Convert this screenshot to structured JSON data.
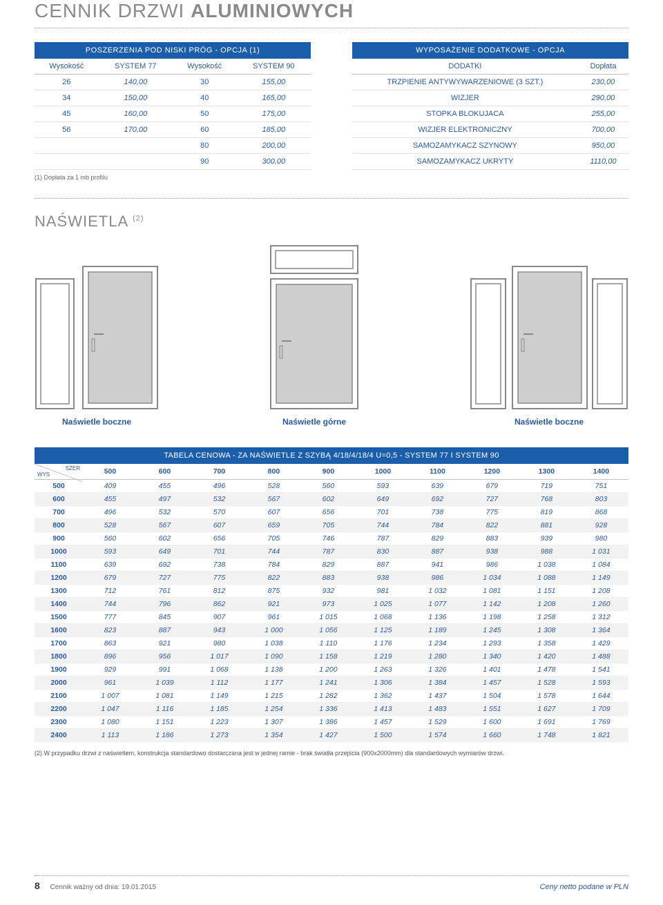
{
  "colors": {
    "primary_blue": "#1a5eab",
    "text_blue": "#2a5a9a",
    "grey_title": "#8a8a8a",
    "row_alt": "#f2f2f2",
    "border": "#e0e0e0",
    "door_fill": "#cfcfcf",
    "door_stroke": "#888888"
  },
  "title_thin": "CENNIK DRZWI ",
  "title_bold": "ALUMINIOWYCH",
  "left_table": {
    "header": "POSZERZENIA POD NISKI PRÓG - OPCJA (1)",
    "cols": [
      "Wysokość",
      "SYSTEM 77",
      "Wysokość",
      "SYSTEM 90"
    ],
    "rows": [
      [
        "26",
        "140,00",
        "30",
        "155,00"
      ],
      [
        "34",
        "150,00",
        "40",
        "165,00"
      ],
      [
        "45",
        "160,00",
        "50",
        "175,00"
      ],
      [
        "56",
        "170,00",
        "60",
        "185,00"
      ],
      [
        "",
        "",
        "80",
        "200,00"
      ],
      [
        "",
        "",
        "90",
        "300,00"
      ]
    ]
  },
  "left_footnote": "(1) Dopłata za 1 mb profilu",
  "right_table": {
    "header": "WYPOSAŻENIE DODATKOWE - OPCJA",
    "cols": [
      "DODATKI",
      "Dopłata"
    ],
    "rows": [
      [
        "TRZPIENIE ANTYWYWARZENIOWE (3 SZT.)",
        "230,00"
      ],
      [
        "WIZJER",
        "290,00"
      ],
      [
        "STOPKA BLOKUJACA",
        "255,00"
      ],
      [
        "WIZJER ELEKTRONICZNY",
        "700,00"
      ],
      [
        "SAMOZAMYKACZ SZYNOWY",
        "950,00"
      ],
      [
        "SAMOZAMYKACZ UKRYTY",
        "1110,00"
      ]
    ]
  },
  "section2_title": "NAŚWIETLA ",
  "section2_sup": "(2)",
  "door_labels": [
    "Naświetle boczne",
    "Naświetle górne",
    "Naświetle boczne"
  ],
  "price_table": {
    "header": "TABELA CENOWA - ZA NAŚWIETLE Z SZYBĄ 4/18/4/18/4 U=0,5 - SYSTEM 77 I SYSTEM 90",
    "corner_top": "SZER",
    "corner_bottom": "WYS",
    "cols": [
      "500",
      "600",
      "700",
      "800",
      "900",
      "1000",
      "1100",
      "1200",
      "1300",
      "1400"
    ],
    "row_heads": [
      "500",
      "600",
      "700",
      "800",
      "900",
      "1000",
      "1100",
      "1200",
      "1300",
      "1400",
      "1500",
      "1600",
      "1700",
      "1800",
      "1900",
      "2000",
      "2100",
      "2200",
      "2300",
      "2400"
    ],
    "data": [
      [
        "409",
        "455",
        "496",
        "528",
        "560",
        "593",
        "639",
        "679",
        "719",
        "751"
      ],
      [
        "455",
        "497",
        "532",
        "567",
        "602",
        "649",
        "692",
        "727",
        "768",
        "803"
      ],
      [
        "496",
        "532",
        "570",
        "607",
        "656",
        "701",
        "738",
        "775",
        "819",
        "868"
      ],
      [
        "528",
        "567",
        "607",
        "659",
        "705",
        "744",
        "784",
        "822",
        "881",
        "928"
      ],
      [
        "560",
        "602",
        "656",
        "705",
        "746",
        "787",
        "829",
        "883",
        "939",
        "980"
      ],
      [
        "593",
        "649",
        "701",
        "744",
        "787",
        "830",
        "887",
        "938",
        "988",
        "1 031"
      ],
      [
        "639",
        "692",
        "738",
        "784",
        "829",
        "887",
        "941",
        "986",
        "1 038",
        "1 084"
      ],
      [
        "679",
        "727",
        "775",
        "822",
        "883",
        "938",
        "986",
        "1 034",
        "1 088",
        "1 149"
      ],
      [
        "712",
        "761",
        "812",
        "875",
        "932",
        "981",
        "1 032",
        "1 081",
        "1 151",
        "1 208"
      ],
      [
        "744",
        "796",
        "862",
        "921",
        "973",
        "1 025",
        "1 077",
        "1 142",
        "1 208",
        "1 260"
      ],
      [
        "777",
        "845",
        "907",
        "961",
        "1 015",
        "1 068",
        "1 136",
        "1 198",
        "1 258",
        "1 312"
      ],
      [
        "823",
        "887",
        "943",
        "1 000",
        "1 056",
        "1 125",
        "1 189",
        "1 245",
        "1 308",
        "1 364"
      ],
      [
        "863",
        "921",
        "980",
        "1 038",
        "1 110",
        "1 176",
        "1 234",
        "1 293",
        "1 358",
        "1 429"
      ],
      [
        "896",
        "956",
        "1 017",
        "1 090",
        "1 158",
        "1 219",
        "1 280",
        "1 340",
        "1 420",
        "1 488"
      ],
      [
        "929",
        "991",
        "1 068",
        "1 138",
        "1 200",
        "1 263",
        "1 326",
        "1 401",
        "1 478",
        "1 541"
      ],
      [
        "961",
        "1 039",
        "1 112",
        "1 177",
        "1 241",
        "1 306",
        "1 384",
        "1 457",
        "1 528",
        "1 593"
      ],
      [
        "1 007",
        "1 081",
        "1 149",
        "1 215",
        "1 282",
        "1 362",
        "1 437",
        "1 504",
        "1 578",
        "1 644"
      ],
      [
        "1 047",
        "1 116",
        "1 185",
        "1 254",
        "1 336",
        "1 413",
        "1 483",
        "1 551",
        "1 627",
        "1 709"
      ],
      [
        "1 080",
        "1 151",
        "1 223",
        "1 307",
        "1 386",
        "1 457",
        "1 529",
        "1 600",
        "1 691",
        "1 769"
      ],
      [
        "1 113",
        "1 186",
        "1 273",
        "1 354",
        "1 427",
        "1 500",
        "1 574",
        "1 660",
        "1 748",
        "1 821"
      ]
    ]
  },
  "footnote2": "(2) W przypadku drzwi z naświetlem, konstrukcja standardowo dostarczana jest w jednej ramie - brak światła przejścia (900x2000mm) dla standardowych wymiarów drzwi.",
  "page_number": "8",
  "footer_left": "Cennik ważny od dnia: 19.01.2015",
  "footer_right": "Ceny netto podane w PLN"
}
